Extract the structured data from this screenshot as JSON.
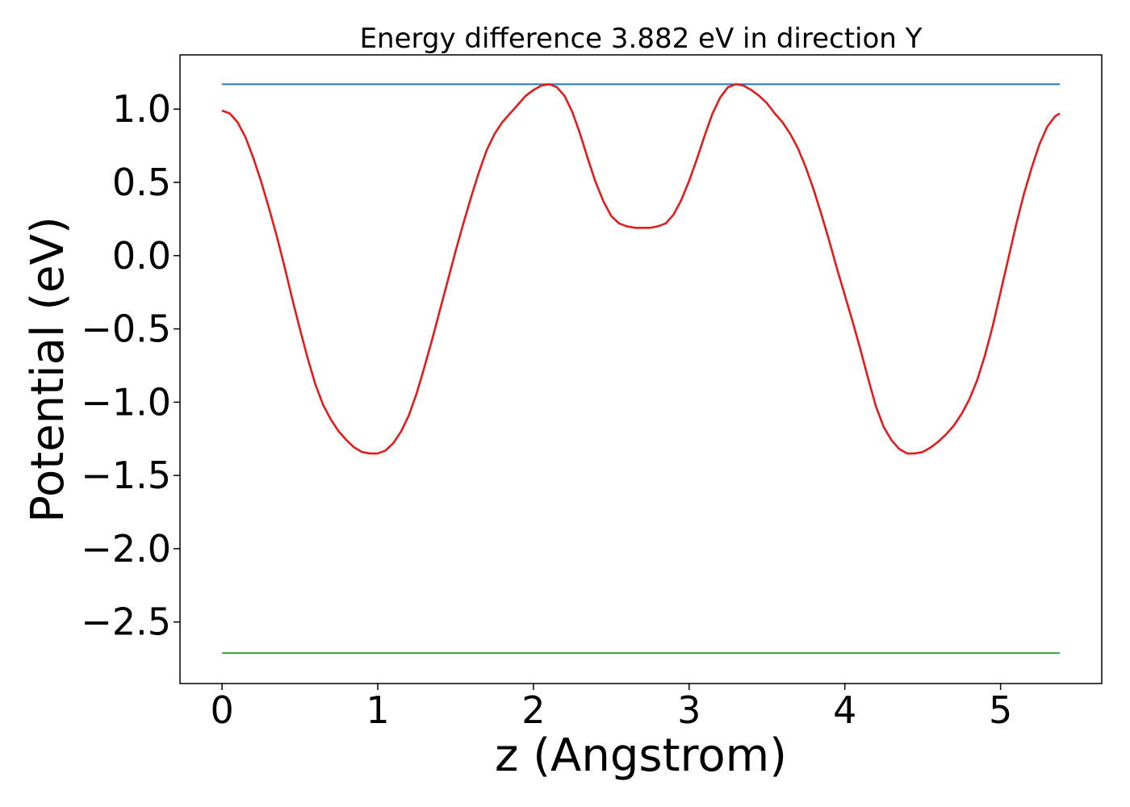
{
  "chart_data": {
    "type": "line",
    "title": "Energy difference 3.882 eV in direction Y",
    "xlabel": "z (Angstrom)",
    "ylabel": "Potential (eV)",
    "xlim": [
      -0.27,
      5.65
    ],
    "ylim": [
      -2.92,
      1.37
    ],
    "xticks": [
      0,
      1,
      2,
      3,
      4,
      5
    ],
    "xtick_labels": [
      "0",
      "1",
      "2",
      "3",
      "4",
      "5"
    ],
    "yticks": [
      1.0,
      0.5,
      0.0,
      -0.5,
      -1.0,
      -1.5,
      -2.0,
      -2.5
    ],
    "ytick_labels": [
      "1.0",
      "0.5",
      "0.0",
      "−0.5",
      "−1.0",
      "−1.5",
      "−2.0",
      "−2.5"
    ],
    "grid": false,
    "series": [
      {
        "color": "#1f77b4",
        "x": [
          0,
          5.38
        ],
        "y": [
          1.17,
          1.17
        ]
      },
      {
        "color": "#2ca02c",
        "x": [
          0,
          5.38
        ],
        "y": [
          -2.712,
          -2.712
        ]
      },
      {
        "color": "#e41a1c",
        "x": [
          0,
          0.05,
          0.1,
          0.15,
          0.2,
          0.25,
          0.3,
          0.35,
          0.4,
          0.45,
          0.5,
          0.55,
          0.6,
          0.65,
          0.7,
          0.75,
          0.8,
          0.85,
          0.9,
          0.95,
          1.0,
          1.05,
          1.1,
          1.15,
          1.2,
          1.25,
          1.3,
          1.35,
          1.4,
          1.45,
          1.5,
          1.55,
          1.6,
          1.65,
          1.7,
          1.75,
          1.8,
          1.85,
          1.9,
          1.95,
          2.0,
          2.05,
          2.1,
          2.15,
          2.2,
          2.25,
          2.3,
          2.35,
          2.4,
          2.45,
          2.5,
          2.55,
          2.6,
          2.65,
          2.7,
          2.75,
          2.8,
          2.85,
          2.9,
          2.95,
          3.0,
          3.05,
          3.1,
          3.15,
          3.2,
          3.25,
          3.3,
          3.35,
          3.4,
          3.45,
          3.5,
          3.55,
          3.6,
          3.65,
          3.7,
          3.75,
          3.8,
          3.85,
          3.9,
          3.95,
          4.0,
          4.05,
          4.1,
          4.15,
          4.2,
          4.25,
          4.3,
          4.35,
          4.4,
          4.45,
          4.5,
          4.55,
          4.6,
          4.65,
          4.7,
          4.75,
          4.8,
          4.85,
          4.9,
          4.95,
          5.0,
          5.05,
          5.1,
          5.15,
          5.2,
          5.25,
          5.3,
          5.35,
          5.38
        ],
        "y": [
          0.99,
          0.97,
          0.91,
          0.81,
          0.67,
          0.51,
          0.33,
          0.14,
          -0.07,
          -0.29,
          -0.5,
          -0.7,
          -0.88,
          -1.02,
          -1.12,
          -1.2,
          -1.26,
          -1.31,
          -1.34,
          -1.35,
          -1.35,
          -1.33,
          -1.28,
          -1.2,
          -1.09,
          -0.94,
          -0.76,
          -0.57,
          -0.37,
          -0.17,
          0.03,
          0.22,
          0.4,
          0.57,
          0.72,
          0.83,
          0.91,
          0.97,
          1.03,
          1.09,
          1.13,
          1.16,
          1.17,
          1.15,
          1.09,
          0.98,
          0.83,
          0.66,
          0.5,
          0.37,
          0.27,
          0.22,
          0.2,
          0.19,
          0.19,
          0.19,
          0.2,
          0.22,
          0.28,
          0.38,
          0.51,
          0.66,
          0.82,
          0.97,
          1.08,
          1.15,
          1.17,
          1.16,
          1.13,
          1.09,
          1.04,
          0.97,
          0.91,
          0.83,
          0.73,
          0.6,
          0.45,
          0.28,
          0.1,
          -0.09,
          -0.27,
          -0.45,
          -0.64,
          -0.84,
          -1.03,
          -1.17,
          -1.26,
          -1.32,
          -1.35,
          -1.35,
          -1.34,
          -1.31,
          -1.27,
          -1.22,
          -1.16,
          -1.08,
          -0.98,
          -0.85,
          -0.68,
          -0.48,
          -0.25,
          -0.02,
          0.21,
          0.42,
          0.6,
          0.76,
          0.88,
          0.95,
          0.97
        ]
      }
    ]
  }
}
